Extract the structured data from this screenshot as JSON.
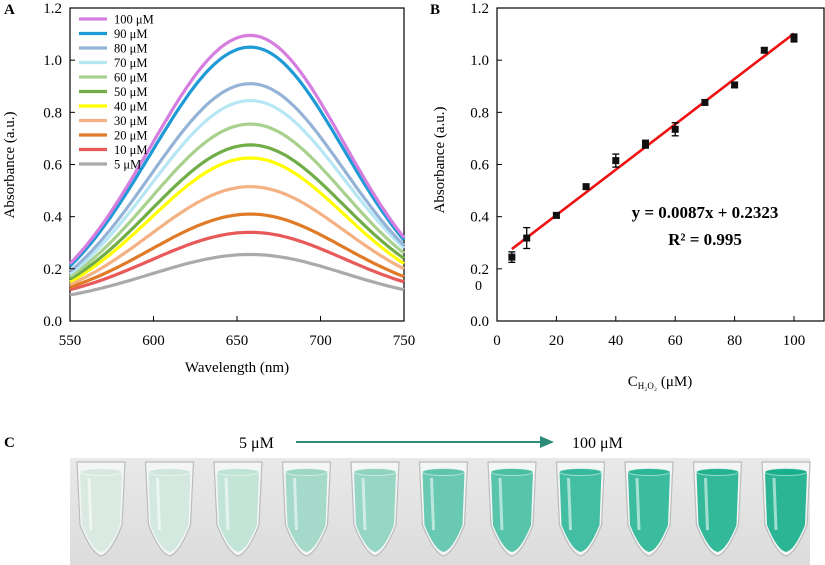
{
  "panel_labels": {
    "a": "A",
    "b": "B",
    "c": "C"
  },
  "chart_data": [
    {
      "type": "line",
      "panel": "A",
      "xlabel": "Wavelength (nm)",
      "ylabel": "Absorbance (a.u.)",
      "xlim": [
        550,
        750
      ],
      "ylim": [
        0.0,
        1.2
      ],
      "x_ticks": [
        "550",
        "600",
        "650",
        "700",
        "750"
      ],
      "y_ticks": [
        "0.0",
        "0.2",
        "0.4",
        "0.6",
        "0.8",
        "1.0",
        "1.2"
      ],
      "legend_position": "top-left",
      "peak_wavelength": 658,
      "series": [
        {
          "name": "100 μM",
          "color": "#d57ee0",
          "peak": 1.095,
          "at_550": 0.22,
          "at_750": 0.32
        },
        {
          "name": "90 μM",
          "color": "#1e9ad6",
          "peak": 1.05,
          "at_550": 0.21,
          "at_750": 0.31
        },
        {
          "name": "80 μM",
          "color": "#95b3d7",
          "peak": 0.91,
          "at_550": 0.19,
          "at_750": 0.29
        },
        {
          "name": "70 μM",
          "color": "#b7e6f4",
          "peak": 0.845,
          "at_550": 0.18,
          "at_750": 0.28
        },
        {
          "name": "60 μM",
          "color": "#a9d18e",
          "peak": 0.755,
          "at_550": 0.17,
          "at_750": 0.26
        },
        {
          "name": "50 μM",
          "color": "#70ad47",
          "peak": 0.675,
          "at_550": 0.16,
          "at_750": 0.24
        },
        {
          "name": "40 μM",
          "color": "#ffff00",
          "peak": 0.625,
          "at_550": 0.15,
          "at_750": 0.22
        },
        {
          "name": "30 μM",
          "color": "#f4b183",
          "peak": 0.515,
          "at_550": 0.14,
          "at_750": 0.2
        },
        {
          "name": "20 μM",
          "color": "#e07a27",
          "peak": 0.41,
          "at_550": 0.13,
          "at_750": 0.17
        },
        {
          "name": "10 μM",
          "color": "#e85a5a",
          "peak": 0.34,
          "at_550": 0.12,
          "at_750": 0.15
        },
        {
          "name": "5 μM",
          "color": "#aaaaaa",
          "peak": 0.255,
          "at_550": 0.1,
          "at_750": 0.12
        }
      ]
    },
    {
      "type": "scatter",
      "panel": "B",
      "xlabel": "C H₂O₂ (μM)",
      "xlabel_main": "C",
      "xlabel_sub": "H₂O₂",
      "xlabel_unit": " (μM)",
      "ylabel": "Absorbance (a.u.)",
      "xlim": [
        0,
        100
      ],
      "ylim": [
        0.0,
        1.2
      ],
      "x_ticks": [
        "0",
        "20",
        "40",
        "60",
        "80",
        "100"
      ],
      "y_ticks": [
        "0.0",
        "0.2",
        "0.4",
        "0.6",
        "0.8",
        "1.0",
        "1.2"
      ],
      "stray_label": "0",
      "points": [
        {
          "x": 5,
          "y": 0.245,
          "err": 0.02
        },
        {
          "x": 10,
          "y": 0.318,
          "err": 0.04
        },
        {
          "x": 20,
          "y": 0.405,
          "err": 0.01
        },
        {
          "x": 30,
          "y": 0.515,
          "err": 0.01
        },
        {
          "x": 40,
          "y": 0.615,
          "err": 0.025
        },
        {
          "x": 50,
          "y": 0.678,
          "err": 0.015
        },
        {
          "x": 60,
          "y": 0.735,
          "err": 0.025
        },
        {
          "x": 70,
          "y": 0.838,
          "err": 0.01
        },
        {
          "x": 80,
          "y": 0.905,
          "err": 0.01
        },
        {
          "x": 90,
          "y": 1.038,
          "err": 0.01
        },
        {
          "x": 100,
          "y": 1.085,
          "err": 0.015
        }
      ],
      "fit": {
        "slope": 0.0087,
        "intercept": 0.2323,
        "x_range": [
          5,
          100
        ],
        "color": "#ee1111"
      },
      "equation": "y = 0.0087x + 0.2323",
      "r2": "R² = 0.995"
    }
  ],
  "panel_c": {
    "label_start": "5 μM",
    "label_end": "100 μM",
    "arrow_color": "#2e8b7a",
    "tube_count": 11,
    "tube_colors": [
      "#d8e8df",
      "#d0e6dc",
      "#bfe3d5",
      "#9ed6c4",
      "#8fd2bf",
      "#5ec4ab",
      "#4bbfa4",
      "#35b89b",
      "#2bb696",
      "#23b290",
      "#1aaf8c"
    ]
  }
}
